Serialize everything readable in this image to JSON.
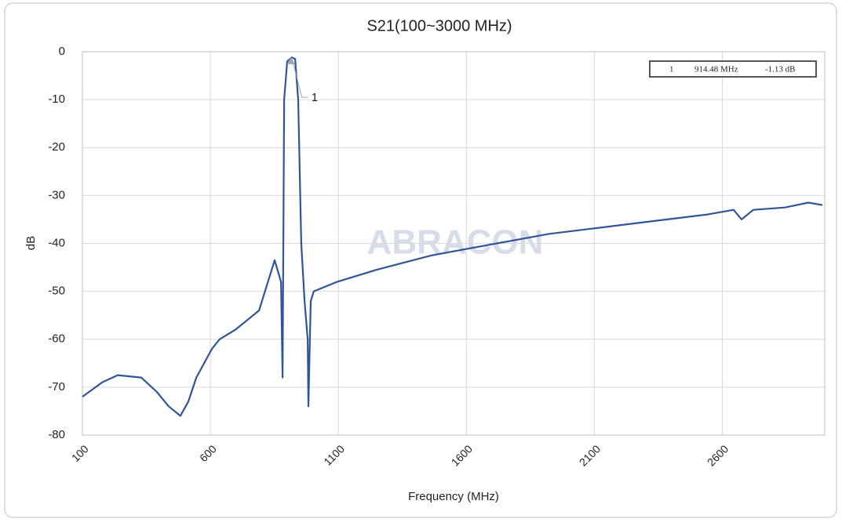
{
  "chart_data": {
    "type": "line",
    "title": "S21(100~3000 MHz)",
    "x_label": "Frequency (MHz)",
    "y_label": "dB",
    "watermark": "ABRACON",
    "xlim": [
      100,
      3000
    ],
    "xticks": [
      100,
      600,
      1100,
      1600,
      2100,
      2600
    ],
    "ylim": [
      -80,
      0
    ],
    "yticks": [
      -80,
      -70,
      -60,
      -50,
      -40,
      -30,
      -20,
      -10,
      0
    ],
    "grid": true,
    "series": [
      {
        "color": "#2f5597",
        "x": [
          100,
          177,
          238,
          330,
          391,
          437,
          483,
          514,
          545,
          606,
          636,
          698,
          744,
          790,
          851,
          876,
          882,
          888,
          900,
          918,
          931,
          943,
          955,
          968,
          980,
          983,
          992,
          1004,
          1096,
          1250,
          1464,
          1617,
          1771,
          1924,
          2077,
          2231,
          2384,
          2537,
          2644,
          2675,
          2721,
          2844,
          2936,
          2991
        ],
        "values": [
          -72,
          -69,
          -67.5,
          -68,
          -71,
          -74,
          -76,
          -73,
          -68,
          -62,
          -60,
          -58,
          -56,
          -54,
          -43.5,
          -48,
          -68,
          -10,
          -2,
          -1.2,
          -1.5,
          -10,
          -40,
          -52,
          -60,
          -74,
          -52,
          -50,
          -48,
          -45.5,
          -42.5,
          -41,
          -39.5,
          -38,
          -37,
          -36,
          -35,
          -34,
          -33,
          -35,
          -33,
          -32.5,
          -31.5,
          -32
        ]
      }
    ],
    "marker": {
      "label": "1",
      "x": 914.48,
      "value": -1.13,
      "x_label": "914.48 MHz",
      "value_label": "-1.13 dB"
    }
  }
}
